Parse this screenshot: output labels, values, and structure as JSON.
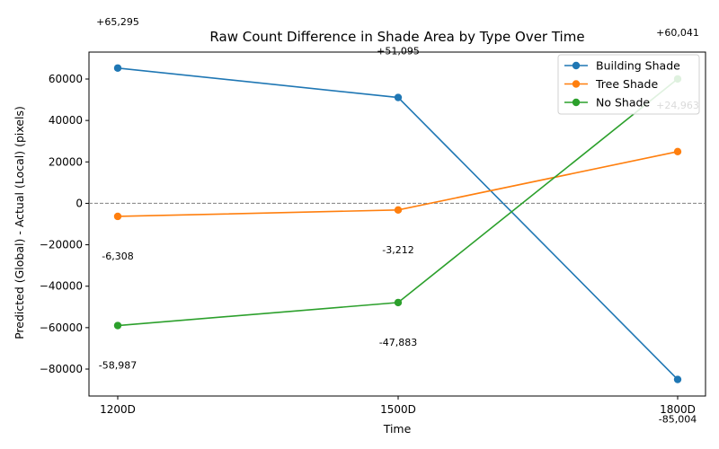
{
  "chart_data": {
    "type": "line",
    "title": "Raw Count Difference in Shade Area by Type Over Time",
    "xlabel": "Time",
    "ylabel": "Predicted (Global) - Actual (Local) (pixels)",
    "categories": [
      "1200D",
      "1500D",
      "1800D"
    ],
    "ylim": [
      -93000,
      73000
    ],
    "yticks": [
      -80000,
      -60000,
      -40000,
      -20000,
      0,
      20000,
      40000,
      60000
    ],
    "ytick_labels": [
      "−80000",
      "−60000",
      "−40000",
      "−20000",
      "0",
      "20000",
      "40000",
      "60000"
    ],
    "reference_line": 0,
    "grid": false,
    "legend_position": "top-right",
    "series": [
      {
        "name": "Building Shade",
        "color": "#1f77b4",
        "values": [
          65295,
          51095,
          -85004
        ],
        "labels": [
          "+65,295",
          "+51,095",
          "-85,004"
        ]
      },
      {
        "name": "Tree Shade",
        "color": "#ff7f0e",
        "values": [
          -6308,
          -3212,
          24963
        ],
        "labels": [
          "-6,308",
          "-3,212",
          "+24,963"
        ]
      },
      {
        "name": "No Shade",
        "color": "#2ca02c",
        "values": [
          -58987,
          -47883,
          60041
        ],
        "labels": [
          "-58,987",
          "-47,883",
          "+60,041"
        ]
      }
    ]
  }
}
